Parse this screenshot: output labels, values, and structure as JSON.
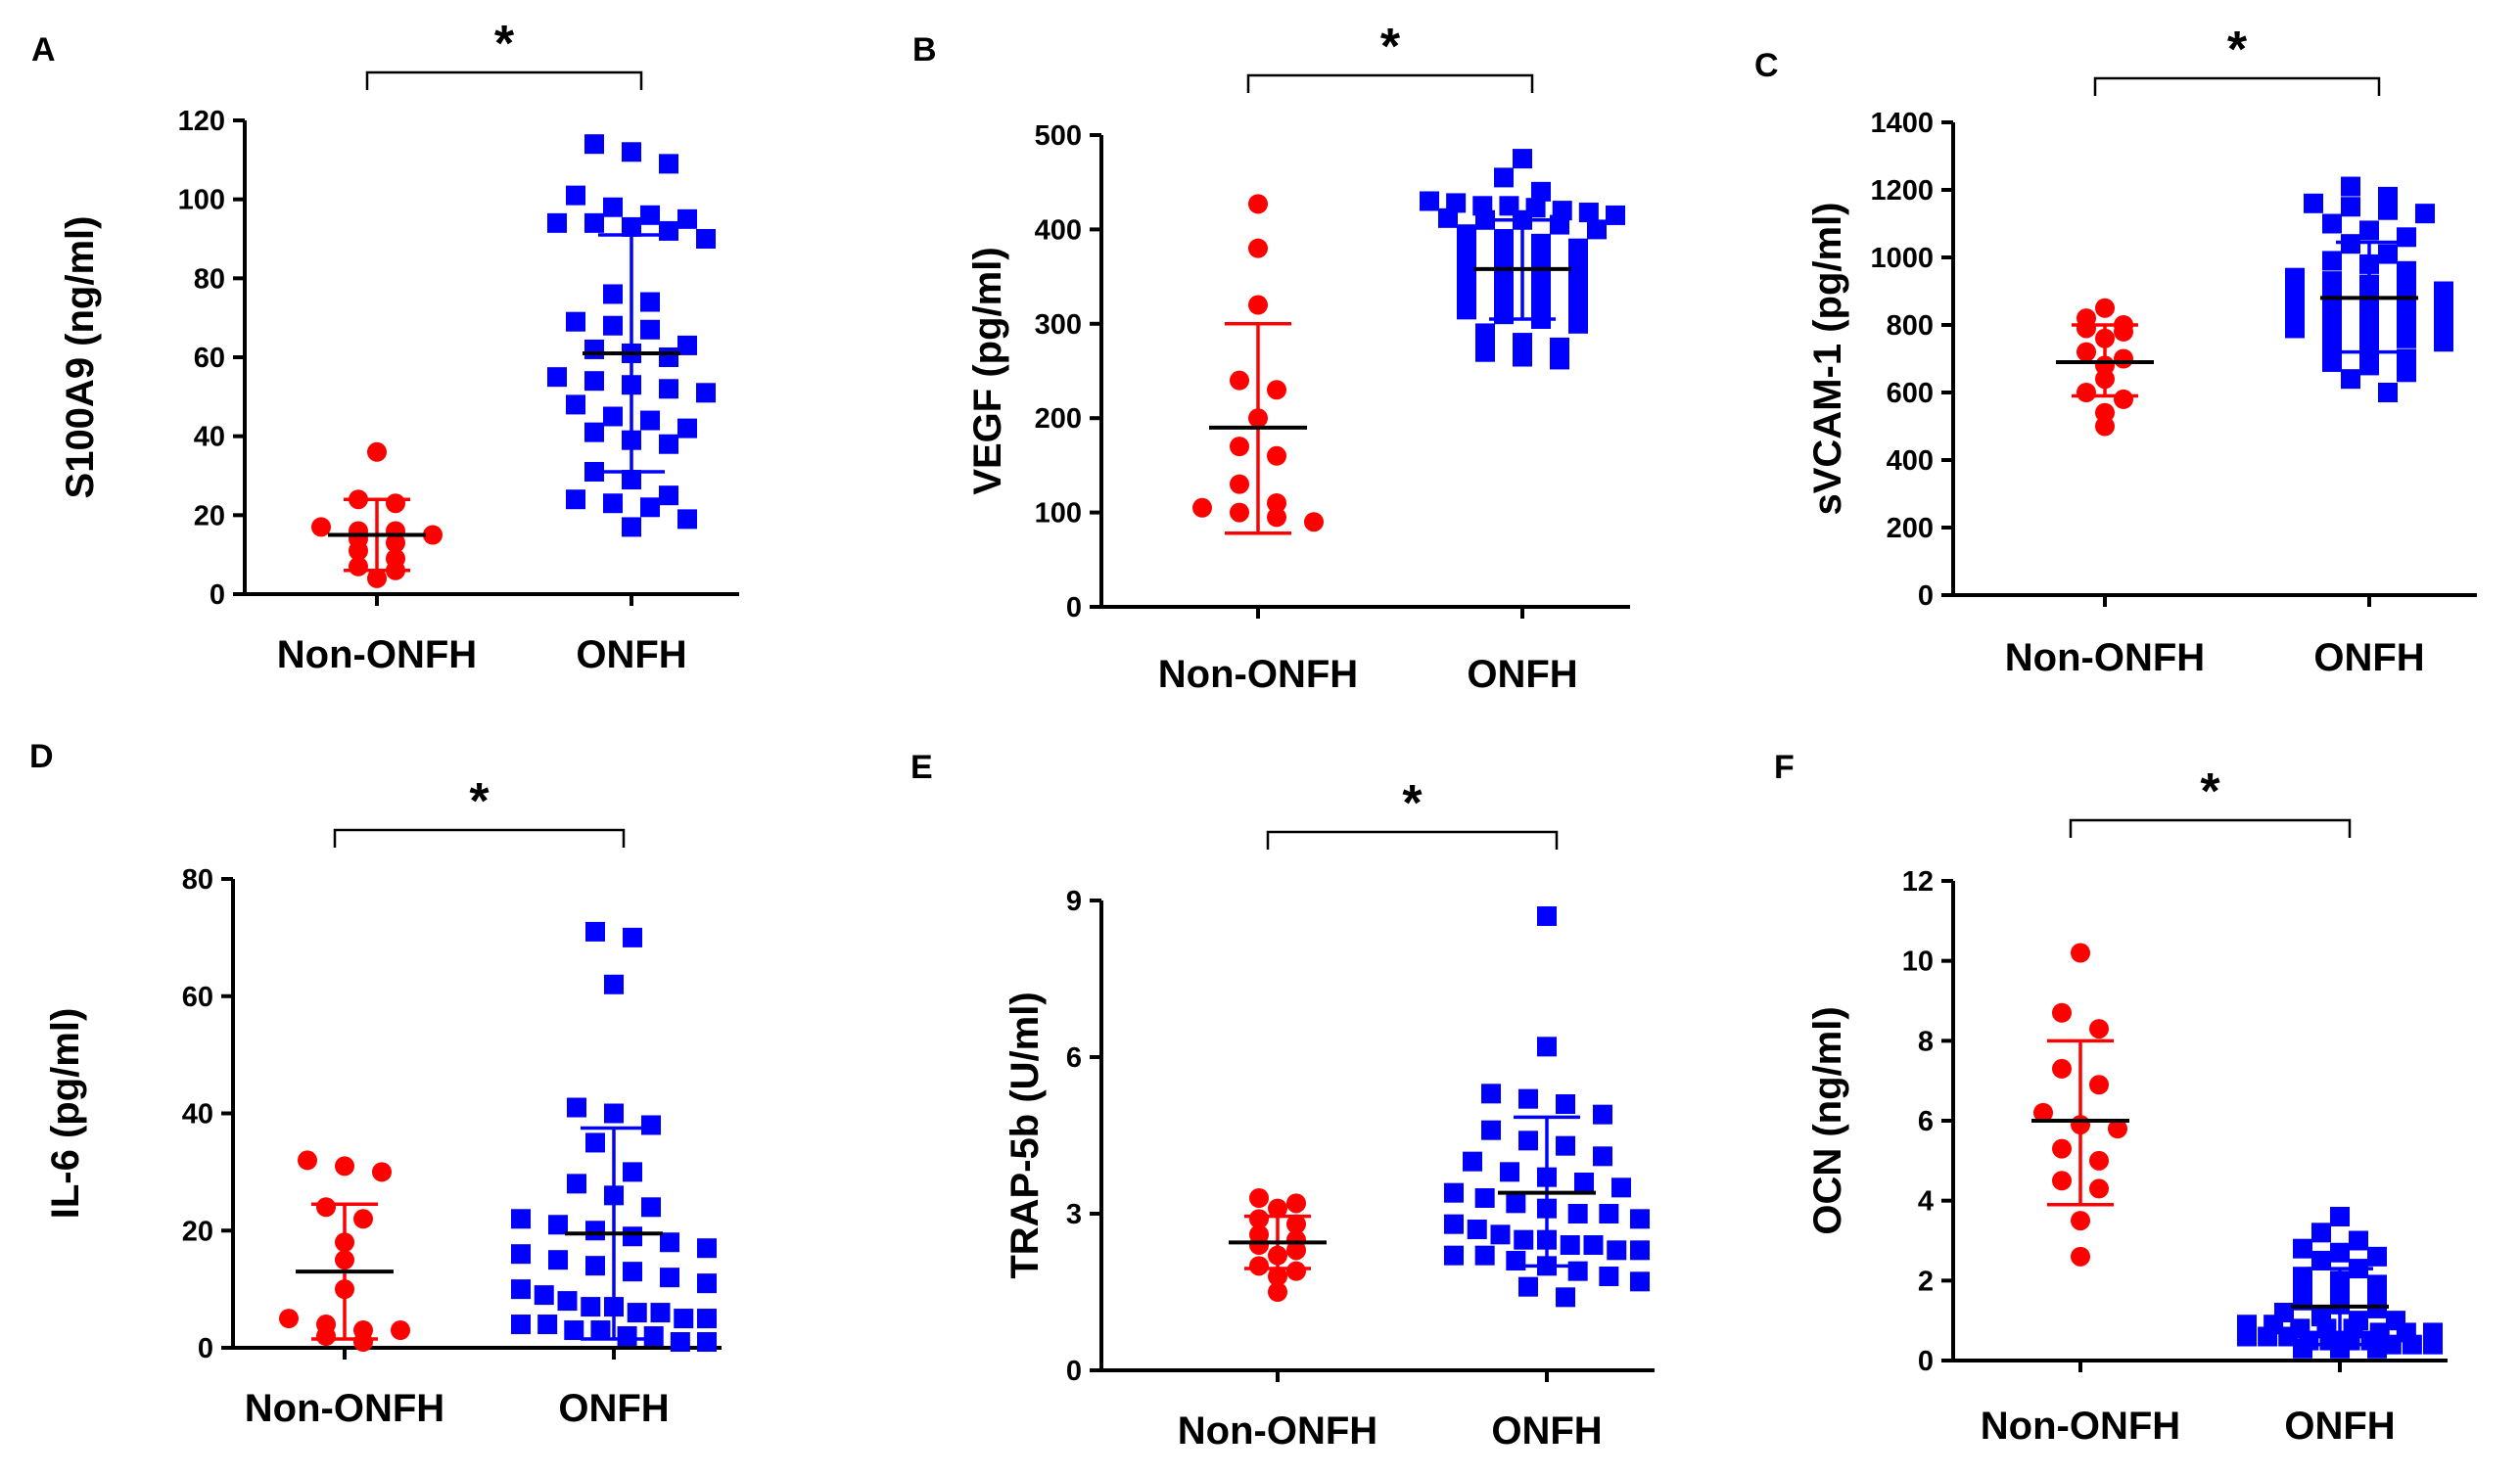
{
  "colors": {
    "control": "#ff0000",
    "onfh": "#0000ff",
    "axis": "#000000"
  },
  "chart_data": [
    {
      "type": "scatter",
      "panel": "A",
      "ylabel": "S100A9 (ng/ml)",
      "categories": [
        "Non-ONFH",
        "ONFH"
      ],
      "ylim": [
        0,
        120
      ],
      "yticks": [
        "0",
        "20",
        "40",
        "60",
        "80",
        "100",
        "120"
      ],
      "tick_values": [
        0,
        20,
        40,
        60,
        80,
        100,
        120
      ],
      "significance": "*",
      "series": [
        {
          "name": "Non-ONFH",
          "marker": "circle",
          "mean": 15,
          "sd_low": 6,
          "sd_high": 24,
          "values": [
            36,
            24,
            23,
            17,
            16,
            16,
            15,
            14,
            13,
            11,
            9,
            7,
            6,
            4
          ]
        },
        {
          "name": "ONFH",
          "marker": "square",
          "mean": 61,
          "sd_low": 31,
          "sd_high": 91,
          "values": [
            114,
            112,
            109,
            101,
            98,
            96,
            95,
            94,
            94,
            93,
            92,
            90,
            76,
            74,
            69,
            68,
            67,
            63,
            62,
            61,
            60,
            55,
            54,
            53,
            52,
            51,
            48,
            45,
            44,
            42,
            41,
            39,
            38,
            31,
            29,
            25,
            24,
            23,
            22,
            19,
            17
          ]
        }
      ]
    },
    {
      "type": "scatter",
      "panel": "B",
      "ylabel": "VEGF (pg/ml)",
      "categories": [
        "Non-ONFH",
        "ONFH"
      ],
      "ylim": [
        0,
        500
      ],
      "yticks": [
        "0",
        "100",
        "200",
        "300",
        "400",
        "500"
      ],
      "tick_values": [
        0,
        100,
        200,
        300,
        400,
        500
      ],
      "significance": "*",
      "series": [
        {
          "name": "Non-ONFH",
          "marker": "circle",
          "mean": 190,
          "sd_low": 78,
          "sd_high": 300,
          "values": [
            427,
            380,
            320,
            240,
            230,
            200,
            170,
            160,
            130,
            110,
            105,
            100,
            95,
            90
          ]
        },
        {
          "name": "ONFH",
          "marker": "square",
          "mean": 358,
          "sd_low": 305,
          "sd_high": 410,
          "values": [
            475,
            455,
            440,
            430,
            428,
            425,
            425,
            423,
            420,
            418,
            415,
            412,
            410,
            410,
            405,
            400,
            395,
            390,
            385,
            380,
            375,
            370,
            365,
            360,
            355,
            350,
            345,
            340,
            335,
            330,
            325,
            320,
            315,
            310,
            305,
            300,
            290,
            280,
            275,
            270,
            265,
            262
          ]
        }
      ]
    },
    {
      "type": "scatter",
      "panel": "C",
      "ylabel": "sVCAM-1 (pg/ml)",
      "categories": [
        "Non-ONFH",
        "ONFH"
      ],
      "ylim": [
        0,
        1400
      ],
      "yticks": [
        "0",
        "200",
        "400",
        "600",
        "800",
        "1000",
        "1200",
        "1400"
      ],
      "tick_values": [
        0,
        200,
        400,
        600,
        800,
        1000,
        1200,
        1400
      ],
      "significance": "*",
      "series": [
        {
          "name": "Non-ONFH",
          "marker": "circle",
          "mean": 690,
          "sd_low": 590,
          "sd_high": 800,
          "values": [
            850,
            820,
            800,
            790,
            780,
            760,
            720,
            700,
            680,
            640,
            600,
            580,
            540,
            500
          ]
        },
        {
          "name": "ONFH",
          "marker": "square",
          "mean": 880,
          "sd_low": 720,
          "sd_high": 1045,
          "values": [
            1210,
            1180,
            1160,
            1150,
            1140,
            1130,
            1100,
            1080,
            1060,
            1040,
            1010,
            990,
            980,
            960,
            940,
            930,
            920,
            910,
            900,
            890,
            880,
            870,
            860,
            850,
            840,
            830,
            820,
            810,
            800,
            790,
            780,
            770,
            760,
            750,
            740,
            720,
            700,
            690,
            680,
            660,
            640,
            600
          ]
        }
      ]
    },
    {
      "type": "scatter",
      "panel": "D",
      "ylabel": "IL-6 (pg/ml)",
      "categories": [
        "Non-ONFH",
        "ONFH"
      ],
      "ylim": [
        0,
        80
      ],
      "yticks": [
        "0",
        "20",
        "40",
        "60",
        "80"
      ],
      "tick_values": [
        0,
        20,
        40,
        60,
        80
      ],
      "significance": "*",
      "series": [
        {
          "name": "Non-ONFH",
          "marker": "circle",
          "mean": 13,
          "sd_low": 1.5,
          "sd_high": 24.5,
          "values": [
            32,
            31,
            30,
            24,
            22,
            18,
            15,
            10,
            5,
            4,
            3,
            3,
            2,
            1
          ]
        },
        {
          "name": "ONFH",
          "marker": "square",
          "mean": 19.5,
          "sd_low": 1.5,
          "sd_high": 37.5,
          "values": [
            71,
            70,
            62,
            41,
            40,
            38,
            35,
            30,
            28,
            26,
            24,
            22,
            21,
            20,
            19,
            18,
            17,
            16,
            15,
            14,
            13,
            12,
            11,
            10,
            9,
            8,
            7,
            7,
            6,
            6,
            5,
            5,
            4,
            4,
            3,
            3,
            2,
            2,
            1,
            1
          ]
        }
      ]
    },
    {
      "type": "scatter",
      "panel": "E",
      "ylabel": "TRAP-5b (U/ml)",
      "categories": [
        "Non-ONFH",
        "ONFH"
      ],
      "ylim": [
        0,
        9
      ],
      "yticks": [
        "0",
        "3",
        "6",
        "9"
      ],
      "tick_values": [
        0,
        3,
        6,
        9
      ],
      "significance": "*",
      "series": [
        {
          "name": "Non-ONFH",
          "marker": "circle",
          "mean": 2.45,
          "sd_low": 1.95,
          "sd_high": 2.95,
          "values": [
            3.3,
            3.2,
            3.1,
            2.9,
            2.8,
            2.6,
            2.5,
            2.4,
            2.3,
            2.2,
            2.0,
            1.9,
            1.8,
            1.5
          ]
        },
        {
          "name": "ONFH",
          "marker": "square",
          "mean": 3.4,
          "sd_low": 2.0,
          "sd_high": 4.85,
          "values": [
            8.7,
            6.2,
            5.3,
            5.2,
            5.1,
            4.9,
            4.6,
            4.4,
            4.3,
            4.1,
            4.0,
            3.8,
            3.7,
            3.6,
            3.5,
            3.4,
            3.3,
            3.2,
            3.1,
            3.0,
            3.0,
            2.9,
            2.8,
            2.7,
            2.6,
            2.5,
            2.5,
            2.4,
            2.4,
            2.3,
            2.3,
            2.2,
            2.2,
            2.1,
            2.0,
            1.9,
            1.8,
            1.7,
            1.6,
            1.4
          ]
        }
      ]
    },
    {
      "type": "scatter",
      "panel": "F",
      "ylabel": "OCN (ng/ml)",
      "categories": [
        "Non-ONFH",
        "ONFH"
      ],
      "ylim": [
        0,
        12
      ],
      "yticks": [
        "0",
        "2",
        "4",
        "6",
        "8",
        "10",
        "12"
      ],
      "tick_values": [
        0,
        2,
        4,
        6,
        8,
        10,
        12
      ],
      "significance": "*",
      "series": [
        {
          "name": "Non-ONFH",
          "marker": "circle",
          "mean": 6.0,
          "sd_low": 3.9,
          "sd_high": 8.0,
          "values": [
            10.2,
            8.7,
            8.3,
            7.3,
            6.9,
            6.2,
            5.9,
            5.8,
            5.3,
            5.0,
            4.5,
            4.3,
            3.5,
            2.6
          ]
        },
        {
          "name": "ONFH",
          "marker": "square",
          "mean": 1.35,
          "sd_low": 0.4,
          "sd_high": 2.3,
          "values": [
            3.6,
            3.2,
            3.0,
            2.8,
            2.7,
            2.6,
            2.5,
            2.3,
            2.1,
            2.0,
            1.9,
            1.8,
            1.7,
            1.6,
            1.5,
            1.4,
            1.3,
            1.2,
            1.1,
            1.0,
            1.0,
            0.9,
            0.9,
            0.8,
            0.8,
            0.8,
            0.7,
            0.7,
            0.7,
            0.6,
            0.6,
            0.6,
            0.5,
            0.5,
            0.5,
            0.5,
            0.4,
            0.4,
            0.4,
            0.3,
            0.3,
            0.3
          ]
        }
      ]
    }
  ]
}
